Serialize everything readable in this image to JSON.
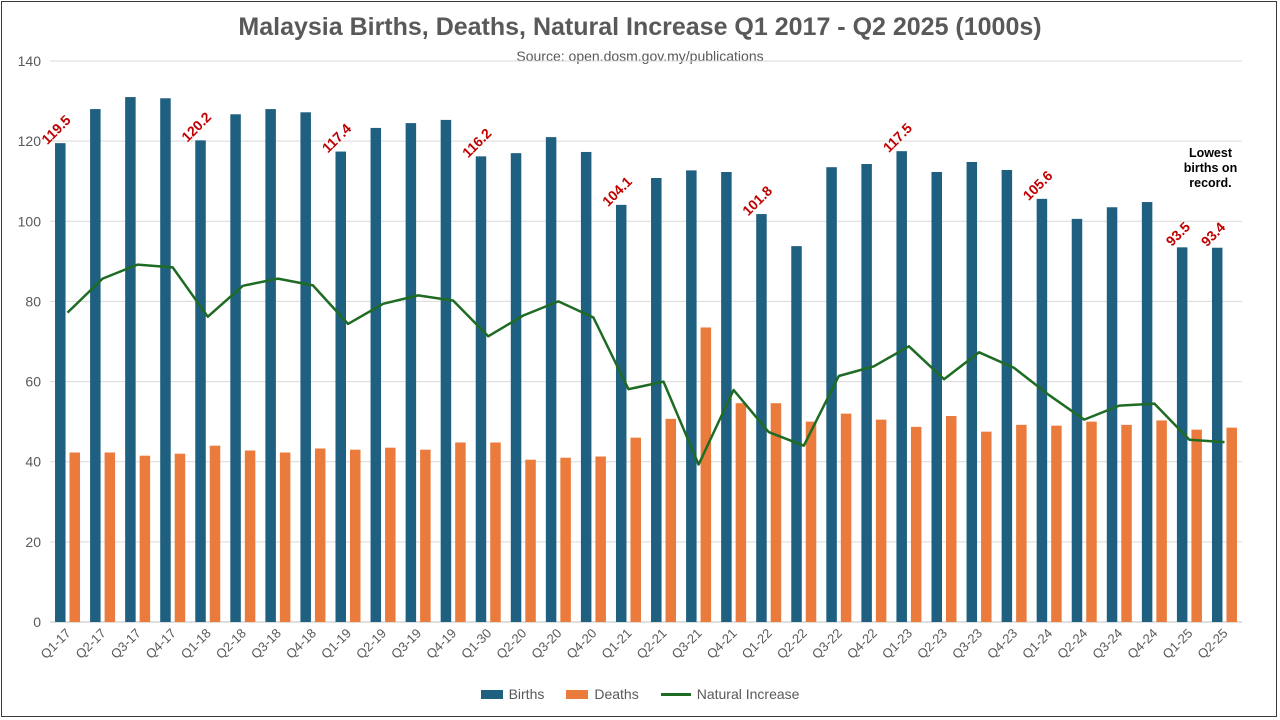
{
  "chart_data": {
    "type": "bar",
    "title": "Malaysia Births, Deaths, Natural Increase Q1 2017 - Q2 2025 (1000s)",
    "subtitle": "Source: open.dosm.gov.my/publications",
    "xlabel": "",
    "ylabel": "",
    "ylim": [
      0,
      140
    ],
    "yticks": [
      0,
      20,
      40,
      60,
      80,
      100,
      120,
      140
    ],
    "grid": true,
    "legend_position": "bottom",
    "categories": [
      "Q1-17",
      "Q2-17",
      "Q3-17",
      "Q4-17",
      "Q1-18",
      "Q2-18",
      "Q3-18",
      "Q4-18",
      "Q1-19",
      "Q2-19",
      "Q3-19",
      "Q4-19",
      "Q1-30",
      "Q2-20",
      "Q3-20",
      "Q4-20",
      "Q1-21",
      "Q2-21",
      "Q3-21",
      "Q4-21",
      "Q1-22",
      "Q2-22",
      "Q3-22",
      "Q4-22",
      "Q1-23",
      "Q2-23",
      "Q3-23",
      "Q4-23",
      "Q1-24",
      "Q2-24",
      "Q3-24",
      "Q4-24",
      "Q1-25",
      "Q2-25"
    ],
    "series": [
      {
        "name": "Births",
        "type": "bar",
        "color": "#1f5f7f",
        "values": [
          119.5,
          128,
          131,
          130.7,
          120.2,
          126.7,
          128,
          127.2,
          117.4,
          123.3,
          124.5,
          125.3,
          116.2,
          117,
          121,
          117.3,
          104.1,
          110.8,
          112.7,
          112.3,
          101.8,
          93.8,
          113.5,
          114.3,
          117.5,
          112.3,
          114.8,
          112.8,
          105.6,
          100.6,
          103.5,
          104.8,
          93.5,
          93.4
        ]
      },
      {
        "name": "Deaths",
        "type": "bar",
        "color": "#ea7b3c",
        "values": [
          42.3,
          42.3,
          41.5,
          42,
          44,
          42.8,
          42.3,
          43.3,
          43,
          43.5,
          43,
          44.8,
          44.8,
          40.5,
          41,
          41.3,
          46,
          50.7,
          73.5,
          54.6,
          54.6,
          50,
          52,
          50.5,
          48.7,
          51.4,
          47.5,
          49.2,
          49,
          50,
          49.2,
          50.3,
          48,
          48.5
        ]
      },
      {
        "name": "Natural Increase",
        "type": "line",
        "color": "#1e6b24",
        "values": [
          77.2,
          85.7,
          89.2,
          88.5,
          76.2,
          83.9,
          85.7,
          84,
          74.4,
          79.4,
          81.5,
          80.2,
          71.3,
          76.5,
          80,
          76,
          58.1,
          60,
          39.3,
          57.9,
          47.4,
          44,
          61.4,
          63.8,
          68.8,
          60.6,
          67.3,
          63.4,
          56.6,
          50.5,
          54,
          54.5,
          45.5,
          44.9
        ]
      }
    ],
    "data_labels": [
      {
        "category": "Q1-17",
        "text": "119.5"
      },
      {
        "category": "Q1-18",
        "text": "120.2"
      },
      {
        "category": "Q1-19",
        "text": "117.4"
      },
      {
        "category": "Q1-30",
        "text": "116.2"
      },
      {
        "category": "Q1-21",
        "text": "104.1"
      },
      {
        "category": "Q1-22",
        "text": "101.8"
      },
      {
        "category": "Q1-23",
        "text": "117.5"
      },
      {
        "category": "Q1-24",
        "text": "105.6"
      },
      {
        "category": "Q1-25",
        "text": "93.5"
      },
      {
        "category": "Q2-25",
        "text": "93.4"
      }
    ],
    "label_color": "#c00000",
    "annotation": {
      "lines": [
        "Lowest",
        "births on",
        "record."
      ],
      "category": "Q2-25"
    }
  }
}
